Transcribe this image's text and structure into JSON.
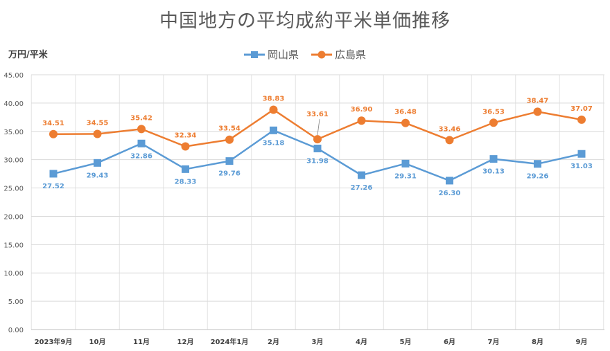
{
  "chart_data": {
    "type": "line",
    "title": "中国地方の平均成約平米単価推移",
    "ylabel": "万円/平米",
    "xlabel": "",
    "ylim": [
      0,
      45
    ],
    "yticks": [
      "0.00",
      "5.00",
      "10.00",
      "15.00",
      "20.00",
      "25.00",
      "30.00",
      "35.00",
      "40.00",
      "45.00"
    ],
    "categories": [
      "2023年9月",
      "10月",
      "11月",
      "12月",
      "2024年1月",
      "2月",
      "3月",
      "4月",
      "5月",
      "6月",
      "7月",
      "8月",
      "9月"
    ],
    "grid": true,
    "legend": "top-center",
    "series": [
      {
        "name": "岡山県",
        "color": "#5b9bd5",
        "marker": "square",
        "values": [
          27.52,
          29.43,
          32.86,
          28.33,
          29.76,
          35.18,
          31.98,
          27.26,
          29.31,
          26.3,
          30.13,
          29.26,
          31.03
        ],
        "labels": [
          "27.52",
          "29.43",
          "32.86",
          "28.33",
          "29.76",
          "35.18",
          "31.98",
          "27.26",
          "29.31",
          "26.30",
          "30.13",
          "29.26",
          "31.03"
        ]
      },
      {
        "name": "広島県",
        "color": "#ed7d31",
        "marker": "circle",
        "values": [
          34.51,
          34.55,
          35.42,
          32.34,
          33.54,
          38.83,
          33.61,
          36.9,
          36.48,
          33.46,
          36.53,
          38.47,
          37.07
        ],
        "labels": [
          "34.51",
          "34.55",
          "35.42",
          "32.34",
          "33.54",
          "38.83",
          "33.61",
          "36.90",
          "36.48",
          "33.46",
          "36.53",
          "38.47",
          "37.07"
        ]
      }
    ]
  }
}
